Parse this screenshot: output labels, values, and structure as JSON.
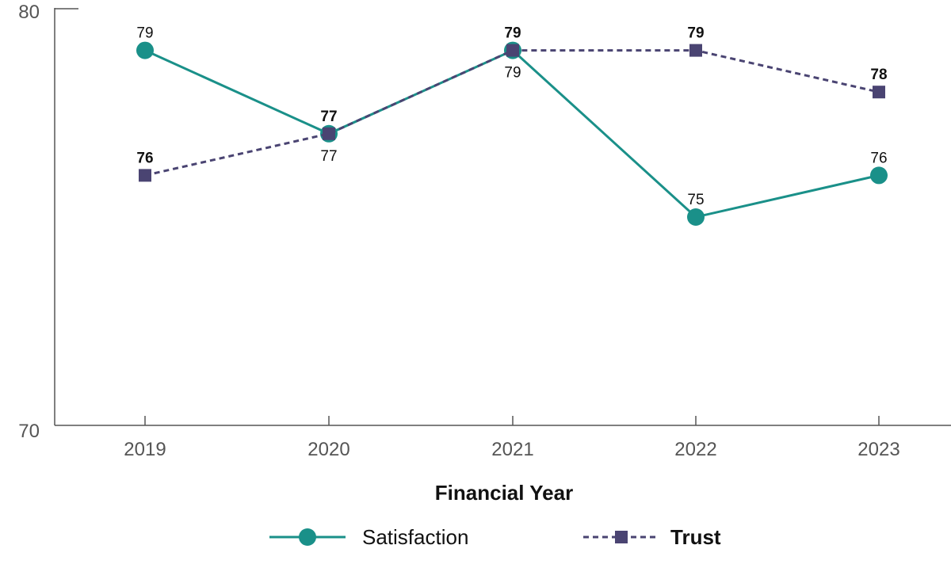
{
  "colors": {
    "satisfaction": "#1a9089",
    "trust": "#4a4472",
    "axis": "#555555"
  },
  "chart_data": {
    "type": "line",
    "x": [
      "2019",
      "2020",
      "2021",
      "2022",
      "2023"
    ],
    "xlabel": "Financial Year",
    "ylabel": "",
    "ylim": [
      70,
      80
    ],
    "yticks": [
      "70",
      "80"
    ],
    "grid": false,
    "legend_position": "bottom",
    "series": [
      {
        "name": "Satisfaction",
        "values": [
          79,
          77,
          79,
          75,
          76
        ],
        "labels": [
          "79",
          "77",
          "79",
          "75",
          "76"
        ],
        "style": "solid",
        "marker": "circle"
      },
      {
        "name": "Trust",
        "values": [
          76,
          77,
          79,
          79,
          78
        ],
        "labels": [
          "76",
          "77",
          "79",
          "79",
          "78"
        ],
        "style": "dashed",
        "marker": "square"
      }
    ]
  }
}
